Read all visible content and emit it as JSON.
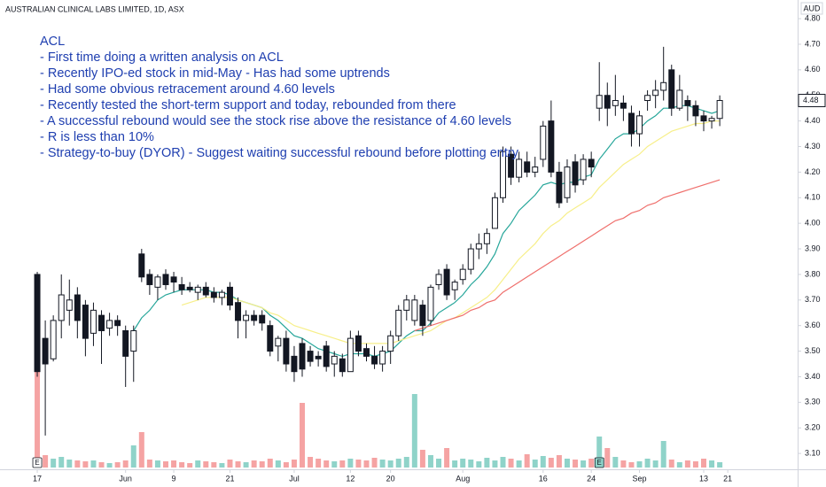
{
  "chart_data": {
    "type": "candlestick",
    "title": "AUSTRALIAN CLINICAL LABS LIMITED, 1D, ASX",
    "currency": "AUD",
    "annotation": [
      "ACL",
      "- First time doing a written analysis on ACL",
      "- Recently IPO-ed stock in mid-May - Has had some uptrends",
      "- Had some obvious retracement around 4.60 levels",
      "- Recently tested the short-term support and today, rebounded from there",
      "- A successful rebound would see the stock rise above the resistance of 4.60 levels",
      "- R is less than 10%",
      "- Strategy-to-buy (DYOR) - Suggest waiting successful rebound before plotting entry"
    ],
    "open": [
      3.8,
      3.55,
      3.47,
      3.62,
      3.66,
      3.72,
      3.68,
      3.57,
      3.64,
      3.59,
      3.62,
      3.58,
      3.5,
      3.88,
      3.8,
      3.75,
      3.8,
      3.79,
      3.76,
      3.75,
      3.73,
      3.75,
      3.73,
      3.71,
      3.75,
      3.69,
      3.62,
      3.64,
      3.64,
      3.6,
      3.52,
      3.55,
      3.48,
      3.53,
      3.5,
      3.48,
      3.52,
      3.45,
      3.47,
      3.42,
      3.56,
      3.51,
      3.48,
      3.45,
      3.5,
      3.56,
      3.66,
      3.62,
      3.68,
      3.62,
      3.76,
      3.82,
      3.74,
      3.78,
      3.82,
      3.9,
      3.92,
      3.98,
      4.1,
      4.27,
      4.18,
      4.24,
      4.2,
      4.25,
      4.4,
      4.2,
      4.1,
      4.24,
      4.17,
      4.25,
      4.45,
      4.5,
      4.46,
      4.47,
      4.43,
      4.35,
      4.48,
      4.5,
      4.52,
      4.6,
      4.45,
      4.48,
      4.46,
      4.42,
      4.4,
      4.41
    ],
    "high": [
      3.81,
      3.62,
      3.64,
      3.8,
      3.78,
      3.75,
      3.7,
      3.69,
      3.66,
      3.65,
      3.64,
      3.6,
      3.6,
      3.9,
      3.82,
      3.8,
      3.82,
      3.81,
      3.79,
      3.77,
      3.76,
      3.77,
      3.75,
      3.74,
      3.77,
      3.71,
      3.66,
      3.66,
      3.66,
      3.62,
      3.56,
      3.58,
      3.52,
      3.55,
      3.52,
      3.5,
      3.54,
      3.5,
      3.49,
      3.58,
      3.58,
      3.53,
      3.52,
      3.52,
      3.58,
      3.68,
      3.72,
      3.72,
      3.7,
      3.76,
      3.82,
      3.84,
      3.78,
      3.84,
      3.92,
      3.96,
      3.98,
      4.12,
      4.3,
      4.3,
      4.28,
      4.28,
      4.26,
      4.4,
      4.48,
      4.24,
      4.25,
      4.27,
      4.27,
      4.28,
      4.63,
      4.55,
      4.58,
      4.5,
      4.46,
      4.44,
      4.52,
      4.56,
      4.69,
      4.62,
      4.58,
      4.5,
      4.48,
      4.44,
      4.42,
      4.5
    ],
    "low": [
      3.4,
      3.17,
      3.46,
      3.55,
      3.6,
      3.55,
      3.48,
      3.52,
      3.45,
      3.56,
      3.56,
      3.36,
      3.38,
      3.77,
      3.72,
      3.7,
      3.74,
      3.73,
      3.72,
      3.73,
      3.7,
      3.71,
      3.69,
      3.68,
      3.66,
      3.55,
      3.55,
      3.6,
      3.58,
      3.48,
      3.46,
      3.42,
      3.38,
      3.4,
      3.44,
      3.44,
      3.42,
      3.4,
      3.4,
      3.42,
      3.48,
      3.46,
      3.43,
      3.42,
      3.45,
      3.54,
      3.62,
      3.6,
      3.56,
      3.6,
      3.74,
      3.7,
      3.7,
      3.76,
      3.8,
      3.86,
      3.88,
      3.98,
      4.08,
      4.15,
      4.16,
      4.18,
      4.18,
      4.22,
      4.18,
      4.06,
      4.08,
      4.12,
      4.15,
      4.18,
      4.4,
      4.38,
      4.42,
      4.4,
      4.3,
      4.3,
      4.44,
      4.45,
      4.48,
      4.42,
      4.44,
      4.4,
      4.38,
      4.36,
      4.37,
      4.38
    ],
    "close": [
      3.42,
      3.45,
      3.62,
      3.72,
      3.7,
      3.62,
      3.55,
      3.66,
      3.58,
      3.62,
      3.6,
      3.48,
      3.58,
      3.79,
      3.76,
      3.79,
      3.76,
      3.77,
      3.74,
      3.74,
      3.75,
      3.72,
      3.71,
      3.73,
      3.68,
      3.62,
      3.64,
      3.62,
      3.61,
      3.5,
      3.55,
      3.45,
      3.42,
      3.43,
      3.46,
      3.47,
      3.44,
      3.48,
      3.42,
      3.55,
      3.5,
      3.48,
      3.45,
      3.5,
      3.56,
      3.66,
      3.7,
      3.7,
      3.6,
      3.75,
      3.8,
      3.72,
      3.77,
      3.82,
      3.9,
      3.92,
      3.96,
      4.1,
      4.28,
      4.18,
      4.25,
      4.2,
      4.22,
      4.38,
      4.2,
      4.08,
      4.22,
      4.15,
      4.25,
      4.22,
      4.5,
      4.45,
      4.48,
      4.45,
      4.35,
      4.42,
      4.5,
      4.52,
      4.55,
      4.45,
      4.52,
      4.46,
      4.42,
      4.4,
      4.41,
      4.48
    ],
    "volume": [
      108,
      14,
      10,
      12,
      9,
      8,
      7,
      8,
      6,
      5,
      6,
      8,
      25,
      40,
      9,
      8,
      7,
      8,
      6,
      5,
      8,
      7,
      6,
      5,
      9,
      7,
      6,
      8,
      7,
      10,
      8,
      6,
      9,
      73,
      12,
      10,
      8,
      7,
      8,
      10,
      9,
      8,
      11,
      9,
      8,
      10,
      12,
      83,
      20,
      14,
      10,
      22,
      8,
      10,
      9,
      7,
      11,
      8,
      12,
      10,
      8,
      15,
      9,
      13,
      11,
      14,
      10,
      9,
      8,
      10,
      35,
      22,
      12,
      8,
      6,
      7,
      10,
      8,
      30,
      9,
      6,
      8,
      7,
      10,
      8,
      6
    ],
    "volume_ylim": [
      0,
      120
    ],
    "moving_averages": [
      {
        "color": "#26a69a",
        "values": [
          null,
          null,
          null,
          null,
          null,
          null,
          null,
          null,
          null,
          null,
          null,
          null,
          3.58,
          3.63,
          3.66,
          3.7,
          3.72,
          3.73,
          3.74,
          3.74,
          3.74,
          3.74,
          3.73,
          3.73,
          3.72,
          3.7,
          3.69,
          3.68,
          3.67,
          3.64,
          3.62,
          3.59,
          3.56,
          3.55,
          3.53,
          3.51,
          3.5,
          3.49,
          3.48,
          3.49,
          3.49,
          3.49,
          3.48,
          3.49,
          3.5,
          3.53,
          3.56,
          3.58,
          3.58,
          3.61,
          3.65,
          3.67,
          3.69,
          3.72,
          3.76,
          3.79,
          3.83,
          3.88,
          3.96,
          4.0,
          4.05,
          4.08,
          4.11,
          4.15,
          4.16,
          4.15,
          4.16,
          4.16,
          4.18,
          4.19,
          4.25,
          4.29,
          4.33,
          4.35,
          4.35,
          4.37,
          4.4,
          4.42,
          4.45,
          4.45,
          4.46,
          4.46,
          4.45,
          4.44,
          4.43,
          4.44
        ]
      },
      {
        "color": "#f7ef8a",
        "values": [
          null,
          null,
          null,
          null,
          null,
          null,
          null,
          null,
          null,
          null,
          null,
          null,
          null,
          null,
          null,
          null,
          null,
          null,
          3.68,
          3.69,
          3.7,
          3.71,
          3.71,
          3.71,
          3.71,
          3.7,
          3.69,
          3.68,
          3.67,
          3.65,
          3.64,
          3.62,
          3.6,
          3.59,
          3.58,
          3.57,
          3.56,
          3.55,
          3.54,
          3.53,
          3.53,
          3.53,
          3.53,
          3.53,
          3.53,
          3.54,
          3.55,
          3.56,
          3.57,
          3.58,
          3.6,
          3.62,
          3.63,
          3.65,
          3.67,
          3.69,
          3.71,
          3.74,
          3.78,
          3.82,
          3.86,
          3.89,
          3.92,
          3.96,
          3.99,
          4.01,
          4.04,
          4.06,
          4.08,
          4.1,
          4.14,
          4.17,
          4.2,
          4.23,
          4.25,
          4.27,
          4.3,
          4.32,
          4.34,
          4.36,
          4.37,
          4.38,
          4.39,
          4.39,
          4.4,
          4.4
        ]
      },
      {
        "color": "#ef6f6c",
        "values": [
          null,
          null,
          null,
          null,
          null,
          null,
          null,
          null,
          null,
          null,
          null,
          null,
          null,
          null,
          null,
          null,
          null,
          null,
          null,
          null,
          null,
          null,
          null,
          null,
          null,
          null,
          null,
          null,
          null,
          null,
          null,
          null,
          null,
          null,
          null,
          null,
          null,
          null,
          null,
          null,
          null,
          null,
          null,
          null,
          null,
          null,
          null,
          3.58,
          3.59,
          3.6,
          3.61,
          3.62,
          3.63,
          3.64,
          3.66,
          3.67,
          3.69,
          3.7,
          3.73,
          3.75,
          3.77,
          3.79,
          3.81,
          3.83,
          3.85,
          3.87,
          3.89,
          3.91,
          3.93,
          3.95,
          3.97,
          3.99,
          4.01,
          4.02,
          4.04,
          4.05,
          4.07,
          4.08,
          4.1,
          4.11,
          4.12,
          4.13,
          4.14,
          4.15,
          4.16,
          4.17
        ]
      }
    ],
    "up_color": "#ffffff",
    "down_color": "#131722",
    "volume_up_color": "#8fd3c9",
    "volume_down_color": "#f5a3a3",
    "events": [
      {
        "index": 0,
        "label": "E"
      },
      {
        "index": 70,
        "label": "E"
      }
    ],
    "xlim": [
      -4.64,
      94.7
    ],
    "xticks": [
      {
        "value": 0,
        "label": "17"
      },
      {
        "value": 11,
        "label": "Jun"
      },
      {
        "value": 17,
        "label": "9"
      },
      {
        "value": 24,
        "label": "21"
      },
      {
        "value": 32,
        "label": "Jul"
      },
      {
        "value": 39,
        "label": "12"
      },
      {
        "value": 44,
        "label": "20"
      },
      {
        "value": 53,
        "label": "Aug"
      },
      {
        "value": 63,
        "label": "16"
      },
      {
        "value": 69,
        "label": "24"
      },
      {
        "value": 75,
        "label": "Sep"
      },
      {
        "value": 83,
        "label": "13"
      },
      {
        "value": 86,
        "label": "21"
      }
    ],
    "ylim": [
      3.045,
      4.873
    ],
    "yticks": [
      {
        "value": 3.1,
        "label": "3.10"
      },
      {
        "value": 3.2,
        "label": "3.20"
      },
      {
        "value": 3.3,
        "label": "3.30"
      },
      {
        "value": 3.4,
        "label": "3.40"
      },
      {
        "value": 3.5,
        "label": "3.50"
      },
      {
        "value": 3.6,
        "label": "3.60"
      },
      {
        "value": 3.7,
        "label": "3.70"
      },
      {
        "value": 3.8,
        "label": "3.80"
      },
      {
        "value": 3.9,
        "label": "3.90"
      },
      {
        "value": 4.0,
        "label": "4.00"
      },
      {
        "value": 4.1,
        "label": "4.10"
      },
      {
        "value": 4.2,
        "label": "4.20"
      },
      {
        "value": 4.3,
        "label": "4.30"
      },
      {
        "value": 4.4,
        "label": "4.40"
      },
      {
        "value": 4.5,
        "label": "4.50"
      },
      {
        "value": 4.6,
        "label": "4.60"
      },
      {
        "value": 4.7,
        "label": "4.70"
      },
      {
        "value": 4.8,
        "label": "4.80"
      }
    ],
    "grid": false
  }
}
